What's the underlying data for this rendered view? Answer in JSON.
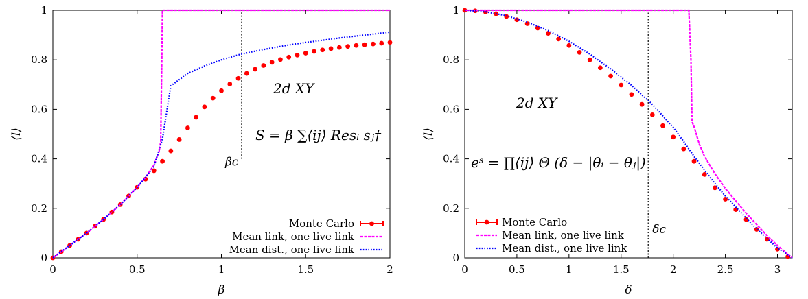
{
  "colors": {
    "monte_carlo": "#ff0000",
    "monte_carlo_err": "#ff0000",
    "mean_link": "#ff00ff",
    "mean_dist": "#0000ff",
    "marker": "#000000"
  },
  "chart_data": [
    {
      "type": "line",
      "title": "",
      "xlabel": "β",
      "ylabel": "⟨l⟩",
      "xlim": [
        0,
        2
      ],
      "ylim": [
        0,
        1
      ],
      "xticks": [
        "0",
        "0.5",
        "1",
        "1.5",
        "2"
      ],
      "yticks": [
        "0",
        "0.2",
        "0.4",
        "0.6",
        "0.8",
        "1"
      ],
      "legend_position": "bottom-right",
      "annotation_label": "2d XY",
      "equation": "S = β ∑⟨ij⟩ Resᵢ sⱼ†",
      "marker_label": "βc",
      "critical_x": 1.12,
      "critical_line_y": [
        0.4,
        1.0
      ],
      "series": [
        {
          "name": "Monte Carlo",
          "style": "points",
          "x": [
            0.0,
            0.05,
            0.1,
            0.15,
            0.2,
            0.25,
            0.3,
            0.35,
            0.4,
            0.45,
            0.5,
            0.55,
            0.6,
            0.65,
            0.7,
            0.75,
            0.8,
            0.85,
            0.9,
            0.95,
            1.0,
            1.05,
            1.1,
            1.15,
            1.2,
            1.25,
            1.3,
            1.35,
            1.4,
            1.45,
            1.5,
            1.55,
            1.6,
            1.65,
            1.7,
            1.75,
            1.8,
            1.85,
            1.9,
            1.95,
            2.0
          ],
          "y": [
            0.0,
            0.025,
            0.05,
            0.075,
            0.1,
            0.128,
            0.155,
            0.185,
            0.215,
            0.25,
            0.285,
            0.318,
            0.352,
            0.39,
            0.432,
            0.478,
            0.525,
            0.568,
            0.61,
            0.645,
            0.675,
            0.702,
            0.725,
            0.745,
            0.762,
            0.777,
            0.79,
            0.801,
            0.811,
            0.819,
            0.827,
            0.834,
            0.84,
            0.845,
            0.85,
            0.854,
            0.858,
            0.861,
            0.864,
            0.867,
            0.87
          ]
        },
        {
          "name": "Mean link, one live link",
          "style": "dashed",
          "x": [
            0.0,
            0.1,
            0.2,
            0.3,
            0.4,
            0.5,
            0.55,
            0.6,
            0.63,
            0.64,
            0.65,
            0.66,
            1.0,
            1.5,
            2.0
          ],
          "y": [
            0.0,
            0.05,
            0.1,
            0.155,
            0.215,
            0.285,
            0.325,
            0.375,
            0.43,
            0.47,
            1.0,
            1.0,
            1.0,
            1.0,
            1.0
          ]
        },
        {
          "name": "Mean dist., one live link",
          "style": "dotted",
          "x": [
            0.0,
            0.1,
            0.2,
            0.3,
            0.4,
            0.5,
            0.55,
            0.6,
            0.65,
            0.7,
            0.75,
            0.8,
            0.9,
            1.0,
            1.1,
            1.2,
            1.3,
            1.4,
            1.5,
            1.6,
            1.7,
            1.8,
            1.9,
            2.0
          ],
          "y": [
            0.0,
            0.05,
            0.1,
            0.155,
            0.215,
            0.285,
            0.325,
            0.37,
            0.48,
            0.695,
            0.72,
            0.745,
            0.775,
            0.8,
            0.82,
            0.835,
            0.848,
            0.86,
            0.87,
            0.879,
            0.888,
            0.896,
            0.904,
            0.912
          ]
        }
      ]
    },
    {
      "type": "line",
      "title": "",
      "xlabel": "δ",
      "ylabel": "⟨l⟩",
      "xlim": [
        0,
        3.1416
      ],
      "ylim": [
        0,
        1
      ],
      "xticks": [
        "0",
        "0.5",
        "1",
        "1.5",
        "2",
        "2.5",
        "3"
      ],
      "xtick_values": [
        0,
        0.5,
        1,
        1.5,
        2,
        2.5,
        3
      ],
      "yticks": [
        "0",
        "0.2",
        "0.4",
        "0.6",
        "0.8",
        "1"
      ],
      "legend_position": "bottom-left",
      "annotation_label": "2d XY",
      "equation": "eˢ = ∏⟨ij⟩ Θ (δ − |θᵢ − θⱼ|)",
      "marker_label": "δc",
      "critical_x": 1.76,
      "critical_line_y": [
        0.0,
        1.0
      ],
      "series": [
        {
          "name": "Monte Carlo",
          "style": "points",
          "x": [
            0.0,
            0.1,
            0.2,
            0.3,
            0.4,
            0.5,
            0.6,
            0.7,
            0.8,
            0.9,
            1.0,
            1.1,
            1.2,
            1.3,
            1.4,
            1.5,
            1.6,
            1.7,
            1.8,
            1.9,
            2.0,
            2.1,
            2.2,
            2.3,
            2.4,
            2.5,
            2.6,
            2.7,
            2.8,
            2.9,
            3.0,
            3.1
          ],
          "y": [
            1.0,
            0.998,
            0.993,
            0.986,
            0.975,
            0.962,
            0.946,
            0.928,
            0.907,
            0.884,
            0.858,
            0.83,
            0.8,
            0.768,
            0.734,
            0.698,
            0.66,
            0.62,
            0.578,
            0.534,
            0.488,
            0.44,
            0.39,
            0.337,
            0.283,
            0.237,
            0.195,
            0.155,
            0.115,
            0.075,
            0.035,
            0.005
          ]
        },
        {
          "name": "Mean link, one live link",
          "style": "dashed",
          "x": [
            0.0,
            0.5,
            1.0,
            1.5,
            2.0,
            2.15,
            2.17,
            2.18,
            2.2,
            2.25,
            2.3,
            2.4,
            2.5,
            2.6,
            2.7,
            2.8,
            2.9,
            3.0,
            3.1416
          ],
          "y": [
            1.0,
            1.0,
            1.0,
            1.0,
            1.0,
            1.0,
            0.8,
            0.55,
            0.53,
            0.46,
            0.41,
            0.34,
            0.28,
            0.23,
            0.18,
            0.135,
            0.09,
            0.05,
            0.0
          ]
        },
        {
          "name": "Mean dist., one live link",
          "style": "dotted",
          "x": [
            0.0,
            0.2,
            0.4,
            0.6,
            0.8,
            1.0,
            1.2,
            1.4,
            1.6,
            1.8,
            2.0,
            2.1,
            2.2,
            2.3,
            2.4,
            2.5,
            2.6,
            2.7,
            2.8,
            2.9,
            3.0,
            3.1416
          ],
          "y": [
            1.0,
            0.994,
            0.978,
            0.952,
            0.918,
            0.875,
            0.823,
            0.763,
            0.697,
            0.62,
            0.527,
            0.47,
            0.41,
            0.355,
            0.3,
            0.25,
            0.205,
            0.16,
            0.118,
            0.078,
            0.04,
            0.0
          ]
        }
      ]
    }
  ]
}
